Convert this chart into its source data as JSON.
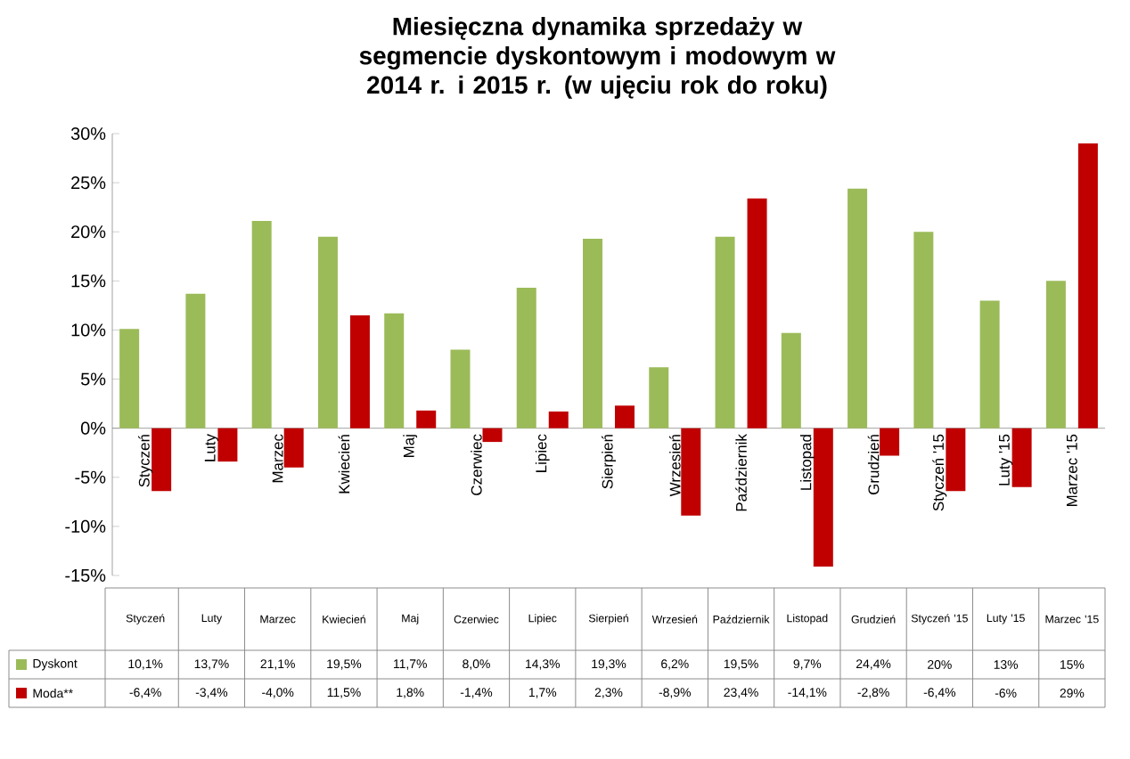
{
  "chart_data": {
    "type": "bar",
    "title": "Miesięczna dynamika sprzedaży w segmencie dyskontowym i modowym w 2014 r. i 2015 r. (w ujęciu rok do roku)",
    "categories": [
      "Styczeń",
      "Luty",
      "Marzec",
      "Kwiecień",
      "Maj",
      "Czerwiec",
      "Lipiec",
      "Sierpień",
      "Wrzesień",
      "Październik",
      "Listopad",
      "Grudzień",
      "Styczeń '15",
      "Luty '15",
      "Marzec '15"
    ],
    "series": [
      {
        "name": "Dyskont",
        "color": "#9bbb59",
        "values": [
          10.1,
          13.7,
          21.1,
          19.5,
          11.7,
          8.0,
          14.3,
          19.3,
          6.2,
          19.5,
          9.7,
          24.4,
          20,
          13,
          15
        ],
        "value_labels": [
          "10,1%",
          "13,7%",
          "21,1%",
          "19,5%",
          "11,7%",
          "8,0%",
          "14,3%",
          "19,3%",
          "6,2%",
          "19,5%",
          "9,7%",
          "24,4%",
          "20%",
          "13%",
          "15%"
        ]
      },
      {
        "name": "Moda**",
        "color": "#c00000",
        "values": [
          -6.4,
          -3.4,
          -4.0,
          11.5,
          1.8,
          -1.4,
          1.7,
          2.3,
          -8.9,
          23.4,
          -14.1,
          -2.8,
          -6.4,
          -6,
          29
        ],
        "value_labels": [
          "-6,4%",
          "-3,4%",
          "-4,0%",
          "11,5%",
          "1,8%",
          "-1,4%",
          "1,7%",
          "2,3%",
          "-8,9%",
          "23,4%",
          "-14,1%",
          "-2,8%",
          "-6,4%",
          "-6%",
          "29%"
        ]
      }
    ],
    "ylim": [
      -15,
      30
    ],
    "yticks": [
      {
        "value": -15,
        "label": "-15%"
      },
      {
        "value": -10,
        "label": "-10%"
      },
      {
        "value": -5,
        "label": "-5%"
      },
      {
        "value": 0,
        "label": "0%"
      },
      {
        "value": 5,
        "label": "5%"
      },
      {
        "value": 10,
        "label": "10%"
      },
      {
        "value": 15,
        "label": "15%"
      },
      {
        "value": 20,
        "label": "20%"
      },
      {
        "value": 25,
        "label": "25%"
      },
      {
        "value": 30,
        "label": "30%"
      }
    ],
    "legend": "bottom"
  }
}
